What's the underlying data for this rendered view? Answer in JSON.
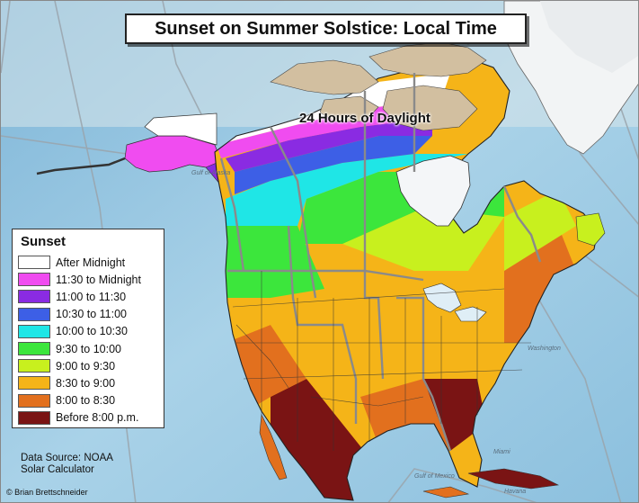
{
  "title": "Sunset on Summer Solstice: Local Time",
  "annotation": "24 Hours of Daylight",
  "legend": {
    "title": "Sunset",
    "items": [
      {
        "label": "After Midnight",
        "color": "#ffffff"
      },
      {
        "label": "11:30 to Midnight",
        "color": "#f04cf0"
      },
      {
        "label": "11:00 to 11:30",
        "color": "#8a2be2"
      },
      {
        "label": "10:30 to 11:00",
        "color": "#3d5fe6"
      },
      {
        "label": "10:00 to 10:30",
        "color": "#1fe6e6"
      },
      {
        "label": "9:30 to 10:00",
        "color": "#3ce63c"
      },
      {
        "label": "9:00 to 9:30",
        "color": "#c8f01e"
      },
      {
        "label": "8:30 to 9:00",
        "color": "#f5b418"
      },
      {
        "label": "8:00 to 8:30",
        "color": "#e2701e"
      },
      {
        "label": "Before 8:00 p.m.",
        "color": "#7a1414"
      }
    ]
  },
  "source": {
    "line1": "Data Source: NOAA",
    "line2": "Solar Calculator"
  },
  "credit": "© Brian Brettschneider",
  "places": {
    "gulf_mexico": "Gulf of Mexico",
    "gulf_alaska": "Gulf of Alaska",
    "washington": "Washington",
    "miami": "Miami",
    "havana": "Havana"
  },
  "colors": {
    "ocean": "#9fcbe3",
    "ocean_light": "#cfe8f3",
    "land_ice": "#d2bfa0",
    "greenland": "#d9cdb5",
    "border": "#8a8a8a",
    "state_line": "#3a3a3a"
  }
}
